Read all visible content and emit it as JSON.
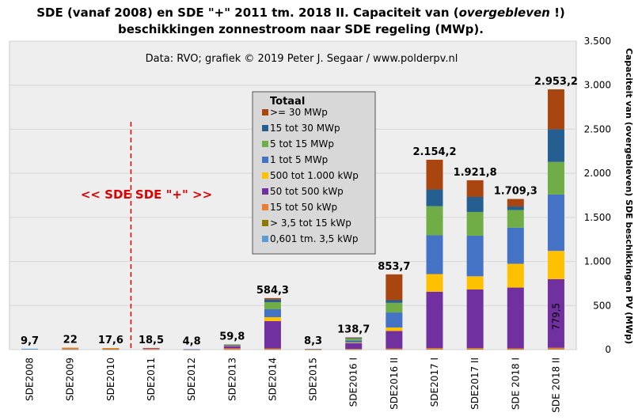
{
  "title": {
    "line1_a": "SDE (vanaf 2008) en SDE \"+\" 2011 tm. 2018 II. Capaciteit van (",
    "line1_italic": "overgebleven",
    "line1_b": " !)",
    "line2": "beschikkingen  zonnestroom naar SDE regeling  (MWp)."
  },
  "source_note": "Data: RVO;  grafiek © 2019 Peter J. Segaar / www.polderpv.nl",
  "divider_annotation": "<<  SDE   SDE \"+\"  >>",
  "y_axis_label": "Capaciteit van (overgebleven) SDE beschikkingen PV (MWp)",
  "inner_label": "779,5",
  "colors": {
    "plot_background": "#eeeeee",
    "gridline": "#d6d6d6",
    "divider": "#dd0000",
    "legend_background": "#d8d8d8"
  },
  "chart_data": {
    "type": "bar",
    "stacked": true,
    "title": "SDE (vanaf 2008) en SDE \"+\" 2011 tm. 2018 II. Capaciteit van (overgebleven !) beschikkingen zonnestroom naar SDE regeling (MWp).",
    "ylabel": "Capaciteit van (overgebleven) SDE beschikkingen PV (MWp)",
    "ylim": [
      0,
      3500
    ],
    "y_ticks": [
      0,
      500,
      1000,
      1500,
      2000,
      2500,
      3000,
      3500
    ],
    "y_tick_labels": [
      "0",
      "500",
      "1.000",
      "1.500",
      "2.000",
      "2.500",
      "3.000",
      "3.500"
    ],
    "y_axis_side": "right",
    "grid": true,
    "legend_title": "Totaal",
    "legend_placement": "center-top",
    "categories": [
      "SDE2008",
      "SDE2009",
      "SDE2010",
      "SDE2011",
      "SDE2012",
      "SDE2013",
      "SDE2014",
      "SDE2015",
      "SDE2016 I",
      "SDE2016 II",
      "SDE2017 I",
      "SDE2017 II",
      "SDE 2018 I",
      "SDE 2018 II"
    ],
    "totals": [
      9.7,
      22,
      17.6,
      18.5,
      4.8,
      59.8,
      584.3,
      8.3,
      138.7,
      853.7,
      2154.2,
      1921.8,
      1709.3,
      2953.2
    ],
    "total_labels": [
      "9,7",
      "22",
      "17,6",
      "18,5",
      "4,8",
      "59,8",
      "584,3",
      "8,3",
      "138,7",
      "853,7",
      "2.154,2",
      "1.921,8",
      "1.709,3",
      "2.953,2"
    ],
    "series": [
      {
        "name": "0,601 tm. 3,5 kWp",
        "color": "#5b9bd5",
        "values": [
          9.7,
          2,
          1.5,
          0,
          0,
          0,
          0,
          0,
          0,
          0,
          0,
          0,
          0,
          0
        ]
      },
      {
        "name": "> 3,5 tot 15 kWp",
        "color": "#8c7a00",
        "values": [
          0,
          5,
          4,
          2.5,
          0.5,
          2.5,
          3,
          0.5,
          2,
          3,
          5,
          5,
          4,
          6
        ]
      },
      {
        "name": "15 tot 50 kWp",
        "color": "#ed7d31",
        "values": [
          0,
          15,
          12.1,
          9,
          1.3,
          12.3,
          10,
          2,
          5,
          8,
          12,
          12,
          10,
          14.5
        ]
      },
      {
        "name": "50 tot 500 kWp",
        "color": "#7030a0",
        "values": [
          0,
          0,
          0,
          7,
          2,
          25,
          310,
          3,
          65,
          200,
          640,
          665,
          690,
          779.5
        ]
      },
      {
        "name": "500 tot 1.000 kWp",
        "color": "#ffc000",
        "values": [
          0,
          0,
          0,
          0,
          0,
          5,
          45,
          0.8,
          8,
          40,
          200,
          150,
          270,
          320
        ]
      },
      {
        "name": "1 tot 5 MWp",
        "color": "#4472c4",
        "values": [
          0,
          0,
          0,
          0,
          1,
          10,
          90,
          2,
          25,
          170,
          440,
          460,
          410,
          640
        ]
      },
      {
        "name": "5 tot 15 MWp",
        "color": "#70ad47",
        "values": [
          0,
          0,
          0,
          0,
          0,
          5,
          80,
          0,
          20,
          110,
          330,
          270,
          200,
          370
        ]
      },
      {
        "name": "15 tot 30 MWp",
        "color": "#255e91",
        "values": [
          0,
          0,
          0,
          0,
          0,
          0,
          30,
          0,
          8,
          30,
          190,
          170,
          40,
          370
        ]
      },
      {
        "name": ">= 30 MWp",
        "color": "#a9460f",
        "values": [
          0,
          0,
          0,
          0,
          0,
          0,
          16.3,
          0,
          5.7,
          292.7,
          337.2,
          189.8,
          85.3,
          453.2
        ]
      }
    ]
  }
}
